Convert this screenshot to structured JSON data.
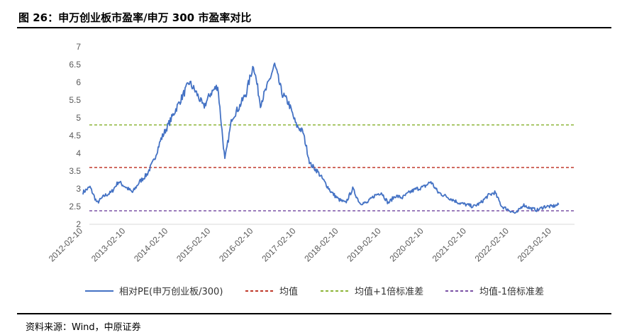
{
  "figure": {
    "title": "图 26：申万创业板市盈率/申万 300 市盈率对比",
    "source": "资料来源：Wind，中原证券"
  },
  "chart_data": {
    "type": "line",
    "title": "",
    "xlabel": "",
    "ylabel": "",
    "ylim": [
      2,
      7
    ],
    "yticks": [
      "2",
      "2.5",
      "3",
      "3.5",
      "4",
      "4.5",
      "5",
      "5.5",
      "6",
      "6.5",
      "7"
    ],
    "xticks": [
      "2012-02-10",
      "2013-02-10",
      "2014-02-10",
      "2015-02-10",
      "2016-02-10",
      "2017-02-10",
      "2018-02-10",
      "2019-02-10",
      "2020-02-10",
      "2021-02-10",
      "2022-02-10",
      "2023-02-10"
    ],
    "grid": false,
    "legend": "bottom",
    "colors": {
      "series": "#4472c4",
      "mean": "#c0392b",
      "plus1": "#8db53a",
      "minus1": "#7b52a6"
    },
    "series": [
      {
        "name": "相对PE(申万创业板/300)",
        "x": [
          "2012-02-10",
          "2012-04-10",
          "2012-06-10",
          "2012-08-10",
          "2012-10-10",
          "2012-12-10",
          "2013-02-10",
          "2013-04-10",
          "2013-06-10",
          "2013-08-10",
          "2013-10-10",
          "2013-12-10",
          "2014-02-10",
          "2014-04-10",
          "2014-06-10",
          "2014-08-10",
          "2014-10-10",
          "2014-12-10",
          "2015-02-10",
          "2015-04-10",
          "2015-06-10",
          "2015-08-10",
          "2015-10-10",
          "2015-12-10",
          "2016-02-10",
          "2016-04-10",
          "2016-06-10",
          "2016-08-10",
          "2016-10-10",
          "2016-12-10",
          "2017-02-10",
          "2017-04-10",
          "2017-06-10",
          "2017-08-10",
          "2017-10-10",
          "2017-12-10",
          "2018-02-10",
          "2018-04-10",
          "2018-06-10",
          "2018-08-10",
          "2018-10-10",
          "2018-12-10",
          "2019-02-10",
          "2019-04-10",
          "2019-06-10",
          "2019-08-10",
          "2019-10-10",
          "2019-12-10",
          "2020-02-10",
          "2020-04-10",
          "2020-06-10",
          "2020-08-10",
          "2020-10-10",
          "2020-12-10",
          "2021-02-10",
          "2021-04-10",
          "2021-06-10",
          "2021-08-10",
          "2021-10-10",
          "2021-12-10",
          "2022-02-10",
          "2022-04-10",
          "2022-06-10",
          "2022-08-10",
          "2022-10-10",
          "2022-12-10",
          "2023-02-10",
          "2023-04-10"
        ],
        "values": [
          2.9,
          3.05,
          2.6,
          2.8,
          2.9,
          3.2,
          3.05,
          2.9,
          3.2,
          3.4,
          3.8,
          4.4,
          4.8,
          5.2,
          5.6,
          6.0,
          5.7,
          5.3,
          5.7,
          5.9,
          3.8,
          5.0,
          5.3,
          5.7,
          6.5,
          5.4,
          5.9,
          6.5,
          5.7,
          5.4,
          4.8,
          4.6,
          3.7,
          3.5,
          3.2,
          2.9,
          2.7,
          2.6,
          3.0,
          2.6,
          2.6,
          2.8,
          2.9,
          2.6,
          2.8,
          2.75,
          2.9,
          3.0,
          3.05,
          3.2,
          2.9,
          2.8,
          2.7,
          2.6,
          2.55,
          2.5,
          2.6,
          2.8,
          2.9,
          2.5,
          2.4,
          2.3,
          2.55,
          2.45,
          2.4,
          2.5,
          2.5,
          2.55
        ]
      }
    ],
    "reference_lines": [
      {
        "name": "均值",
        "value": 3.6
      },
      {
        "name": "均值+1倍标准差",
        "value": 4.8
      },
      {
        "name": "均值-1倍标准差",
        "value": 2.38
      }
    ]
  }
}
